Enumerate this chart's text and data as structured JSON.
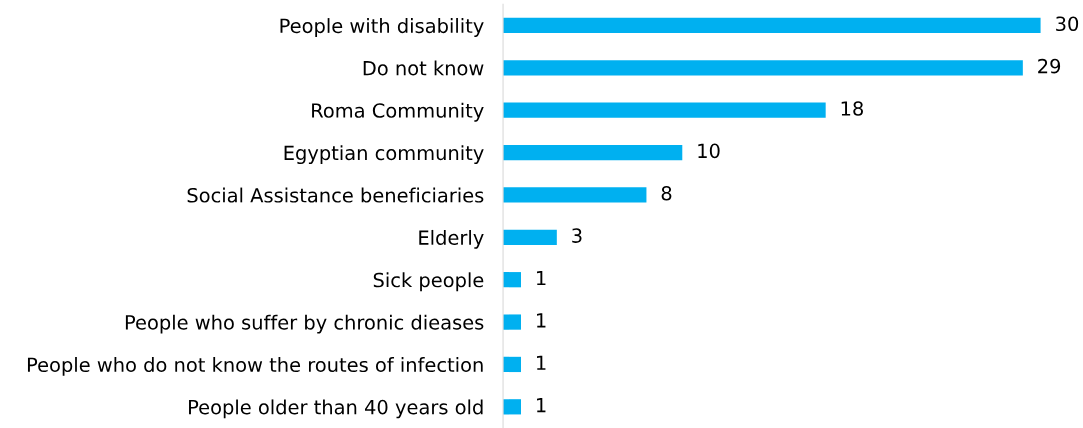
{
  "chart_data": {
    "type": "bar",
    "orientation": "horizontal",
    "categories": [
      "People with disability",
      "Do not know",
      "Roma Community",
      "Egyptian community",
      "Social Assistance beneficiaries",
      "Elderly",
      "Sick people",
      "People who suffer by chronic dieases",
      "People who do not know the routes of infection",
      "People older than 40 years old"
    ],
    "values": [
      30,
      29,
      18,
      10,
      8,
      3,
      1,
      1,
      1,
      1
    ],
    "color": "#00b0f0",
    "data_labels": true,
    "tick_labels": "y"
  }
}
